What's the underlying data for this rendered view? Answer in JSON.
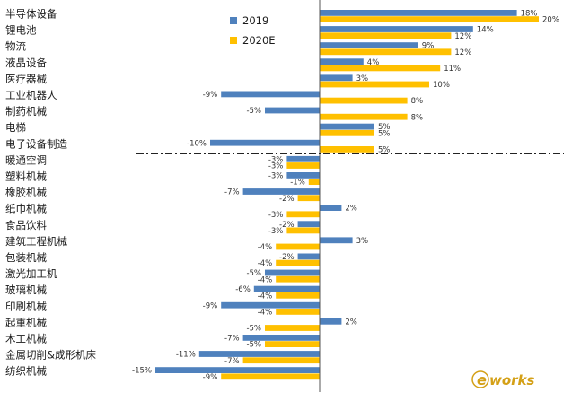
{
  "chart_data": {
    "type": "bar",
    "orientation": "horizontal",
    "title": "",
    "xlabel": "",
    "ylabel": "",
    "value_suffix": "%",
    "xlim": [
      -17,
      22
    ],
    "grid": false,
    "legend": "top-left",
    "categories": [
      "半导体设备",
      "锂电池",
      "物流",
      "液晶设备",
      "医疗器械",
      "工业机器人",
      "制药机械",
      "电梯",
      "电子设备制造",
      "暖通空调",
      "塑料机械",
      "橡胶机械",
      "纸巾机械",
      "食品饮料",
      "建筑工程机械",
      "包装机械",
      "激光加工机",
      "玻璃机械",
      "印刷机械",
      "起重机械",
      "木工机械",
      "金属切削&成形机床",
      "纺织机械"
    ],
    "series": [
      {
        "name": "2019",
        "color": "#4f81bd",
        "values": [
          18,
          14,
          9,
          4,
          3,
          -9,
          -5,
          5,
          -10,
          -3,
          -3,
          -7,
          2,
          -2,
          3,
          -2,
          -5,
          -6,
          -9,
          2,
          -7,
          -11,
          -15
        ]
      },
      {
        "name": "2020E",
        "color": "#ffc000",
        "values": [
          20,
          12,
          12,
          11,
          10,
          8,
          8,
          5,
          5,
          -3,
          -1,
          -2,
          -3,
          -3,
          -4,
          -4,
          -4,
          -4,
          -4,
          -5,
          -5,
          -7,
          -9
        ]
      }
    ],
    "separator_after": "电子设备制造"
  },
  "watermark": {
    "text_e": "e",
    "text_rest": "works",
    "color": "#d4a017"
  }
}
